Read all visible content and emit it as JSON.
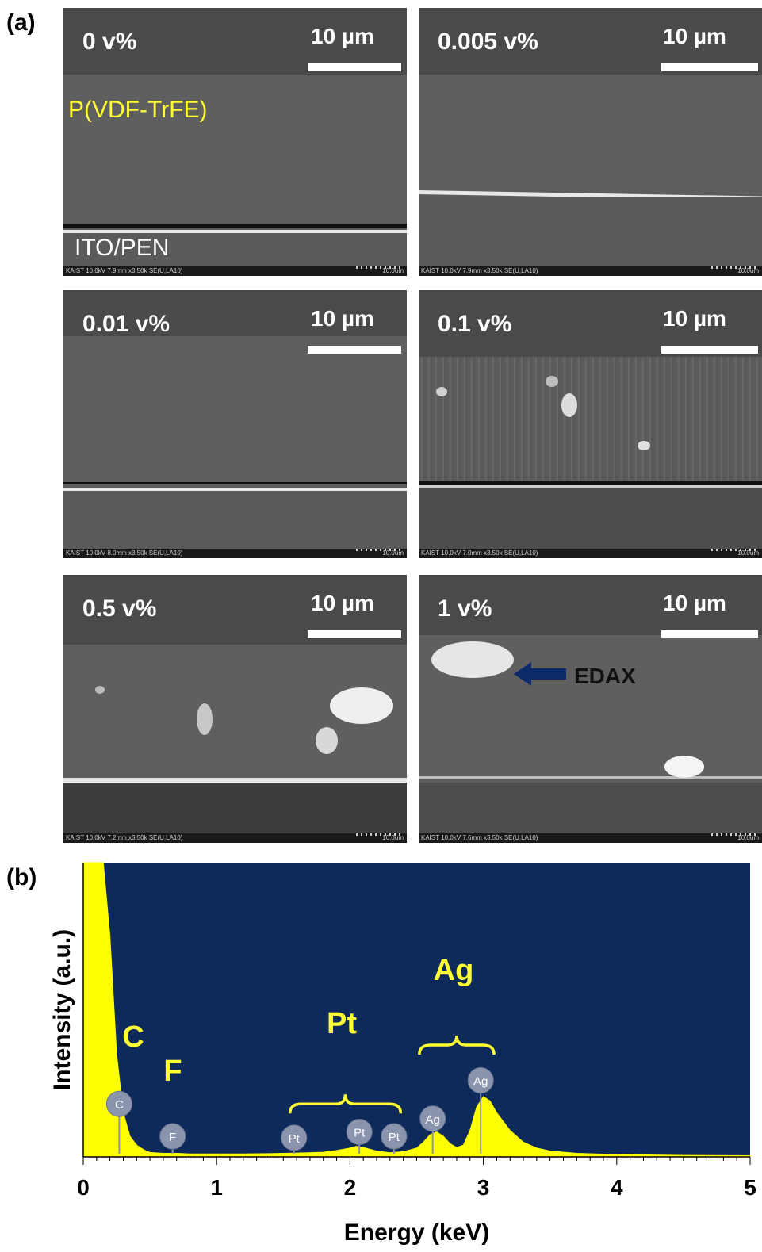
{
  "figure": {
    "panel_a_label": "(a)",
    "panel_b_label": "(b)"
  },
  "sem_panels": [
    {
      "concentration": "0 v%",
      "scale_bar": "10 µm",
      "footer_left": "KAIST 10.0kV 7.9mm x3.50k SE(U,LA10)",
      "footer_right": "10.0um",
      "film_label": "P(VDF-TrFE)",
      "substrate_label": "ITO/PEN"
    },
    {
      "concentration": "0.005 v%",
      "scale_bar": "10 µm",
      "footer_left": "KAIST 10.0kV 7.9mm x3.50k SE(U,LA10)",
      "footer_right": "10.0um"
    },
    {
      "concentration": "0.01 v%",
      "scale_bar": "10 µm",
      "footer_left": "KAIST 10.0kV 8.0mm x3.50k SE(U,LA10)",
      "footer_right": "10.0um"
    },
    {
      "concentration": "0.1 v%",
      "scale_bar": "10 µm",
      "footer_left": "KAIST 10.0kV 7.0mm x3.50k SE(U,LA10)",
      "footer_right": "10.0um"
    },
    {
      "concentration": "0.5 v%",
      "scale_bar": "10 µm",
      "footer_left": "KAIST 10.0kV 7.2mm x3.50k SE(U,LA10)",
      "footer_right": "10.0um"
    },
    {
      "concentration": "1 v%",
      "scale_bar": "10 µm",
      "footer_left": "KAIST 10.0kV 7.6mm x3.50k SE(U,LA10)",
      "footer_right": "10.0um",
      "annotation": "EDAX"
    }
  ],
  "colors": {
    "plot_background": "#0e2a5a",
    "spectrum_fill": "#ffff00",
    "peak_label": "#ffff33",
    "marker_fill": "#8a94ad",
    "annotation_arrow": "#0c2a6a"
  },
  "chart_data": {
    "type": "area",
    "xlabel": "Energy (keV)",
    "ylabel": "Intensity (a.u.)",
    "xlim": [
      0,
      5
    ],
    "ylim": [
      0,
      100
    ],
    "x_ticks": [
      "0",
      "1",
      "2",
      "3",
      "4",
      "5"
    ],
    "x_tick_values": [
      0,
      1,
      2,
      3,
      4,
      5
    ],
    "grid": false,
    "series": [
      {
        "x": [
          0.0,
          0.05,
          0.1,
          0.15,
          0.2,
          0.25,
          0.3,
          0.35,
          0.4,
          0.45,
          0.5,
          0.6,
          0.7,
          0.8,
          0.9,
          1.0,
          1.2,
          1.4,
          1.6,
          1.8,
          1.9,
          2.0,
          2.05,
          2.1,
          2.2,
          2.3,
          2.4,
          2.5,
          2.55,
          2.6,
          2.65,
          2.7,
          2.75,
          2.8,
          2.85,
          2.9,
          2.95,
          3.0,
          3.05,
          3.1,
          3.2,
          3.3,
          3.4,
          3.5,
          3.7,
          4.0,
          4.5,
          5.0
        ],
        "y": [
          100,
          100,
          100,
          100,
          75,
          35,
          15,
          7,
          4,
          2.5,
          1.5,
          1.2,
          1.2,
          1.0,
          1.0,
          1.0,
          1.0,
          1.1,
          1.3,
          1.6,
          2.2,
          3.0,
          3.6,
          3.2,
          2.0,
          1.4,
          1.8,
          3.0,
          5.0,
          7.5,
          8.5,
          7.0,
          4.5,
          3.2,
          4.0,
          9.0,
          17.0,
          20.5,
          19.0,
          15.0,
          9.0,
          5.0,
          3.0,
          2.0,
          1.2,
          0.8,
          0.5,
          0.4
        ]
      }
    ],
    "peak_groups": [
      {
        "label": "C"
      },
      {
        "label": "F"
      },
      {
        "label": "Pt"
      },
      {
        "label": "Ag"
      }
    ],
    "markers": [
      {
        "label": "C",
        "x": 0.27,
        "y": 18
      },
      {
        "label": "F",
        "x": 0.67,
        "y": 7
      },
      {
        "label": "Pt",
        "x": 1.58,
        "y": 6.5
      },
      {
        "label": "Pt",
        "x": 2.07,
        "y": 8.5
      },
      {
        "label": "Pt",
        "x": 2.33,
        "y": 7
      },
      {
        "label": "Ag",
        "x": 2.62,
        "y": 13
      },
      {
        "label": "Ag",
        "x": 2.98,
        "y": 26
      }
    ]
  }
}
